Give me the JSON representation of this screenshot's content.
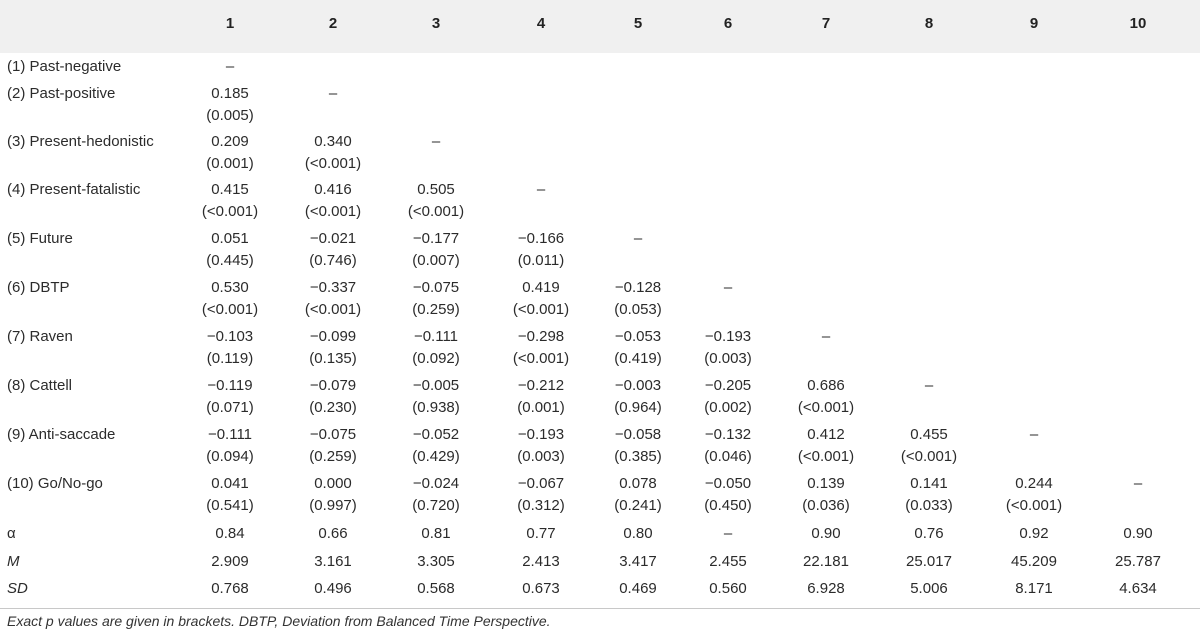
{
  "columns": [
    "1",
    "2",
    "3",
    "4",
    "5",
    "6",
    "7",
    "8",
    "9",
    "10"
  ],
  "rows": [
    {
      "label": "(1) Past-negative",
      "cells": [
        [
          "–",
          ""
        ]
      ]
    },
    {
      "label": "(2) Past-positive",
      "cells": [
        [
          "0.185",
          "(0.005)"
        ],
        [
          "–",
          ""
        ]
      ]
    },
    {
      "label": "(3) Present-hedonistic",
      "cells": [
        [
          "0.209",
          "(0.001)"
        ],
        [
          "0.340",
          "(<0.001)"
        ],
        [
          "–",
          ""
        ]
      ]
    },
    {
      "label": "(4) Present-fatalistic",
      "cells": [
        [
          "0.415",
          "(<0.001)"
        ],
        [
          "0.416",
          "(<0.001)"
        ],
        [
          "0.505",
          "(<0.001)"
        ],
        [
          "–",
          ""
        ]
      ]
    },
    {
      "label": "(5) Future",
      "cells": [
        [
          "0.051",
          "(0.445)"
        ],
        [
          "−0.021",
          "(0.746)"
        ],
        [
          "−0.177",
          "(0.007)"
        ],
        [
          "−0.166",
          "(0.011)"
        ],
        [
          "–",
          ""
        ]
      ]
    },
    {
      "label": "(6) DBTP",
      "cells": [
        [
          "0.530",
          "(<0.001)"
        ],
        [
          "−0.337",
          "(<0.001)"
        ],
        [
          "−0.075",
          "(0.259)"
        ],
        [
          "0.419",
          "(<0.001)"
        ],
        [
          "−0.128",
          "(0.053)"
        ],
        [
          "–",
          ""
        ]
      ]
    },
    {
      "label": "(7) Raven",
      "cells": [
        [
          "−0.103",
          "(0.119)"
        ],
        [
          "−0.099",
          "(0.135)"
        ],
        [
          "−0.111",
          "(0.092)"
        ],
        [
          "−0.298",
          "(<0.001)"
        ],
        [
          "−0.053",
          "(0.419)"
        ],
        [
          "−0.193",
          "(0.003)"
        ],
        [
          "–",
          ""
        ]
      ]
    },
    {
      "label": "(8) Cattell",
      "cells": [
        [
          "−0.119",
          "(0.071)"
        ],
        [
          "−0.079",
          "(0.230)"
        ],
        [
          "−0.005",
          "(0.938)"
        ],
        [
          "−0.212",
          "(0.001)"
        ],
        [
          "−0.003",
          "(0.964)"
        ],
        [
          "−0.205",
          "(0.002)"
        ],
        [
          "0.686",
          "(<0.001)"
        ],
        [
          "–",
          ""
        ]
      ]
    },
    {
      "label": "(9) Anti-saccade",
      "cells": [
        [
          "−0.111",
          "(0.094)"
        ],
        [
          "−0.075",
          "(0.259)"
        ],
        [
          "−0.052",
          "(0.429)"
        ],
        [
          "−0.193",
          "(0.003)"
        ],
        [
          "−0.058",
          "(0.385)"
        ],
        [
          "−0.132",
          "(0.046)"
        ],
        [
          "0.412",
          "(<0.001)"
        ],
        [
          "0.455",
          "(<0.001)"
        ],
        [
          "–",
          ""
        ]
      ]
    },
    {
      "label": "(10) Go/No-go",
      "cells": [
        [
          "0.041",
          "(0.541)"
        ],
        [
          "0.000",
          "(0.997)"
        ],
        [
          "−0.024",
          "(0.720)"
        ],
        [
          "−0.067",
          "(0.312)"
        ],
        [
          "0.078",
          "(0.241)"
        ],
        [
          "−0.050",
          "(0.450)"
        ],
        [
          "0.139",
          "(0.036)"
        ],
        [
          "0.141",
          "(0.033)"
        ],
        [
          "0.244",
          "(<0.001)"
        ],
        [
          "–",
          ""
        ]
      ]
    }
  ],
  "stats": [
    {
      "label": "α",
      "italic": false,
      "values": [
        "0.84",
        "0.66",
        "0.81",
        "0.77",
        "0.80",
        "–",
        "0.90",
        "0.76",
        "0.92",
        "0.90"
      ]
    },
    {
      "label": "M",
      "italic": true,
      "values": [
        "2.909",
        "3.161",
        "3.305",
        "2.413",
        "3.417",
        "2.455",
        "22.181",
        "25.017",
        "45.209",
        "25.787"
      ]
    },
    {
      "label": "SD",
      "italic": true,
      "values": [
        "0.768",
        "0.496",
        "0.568",
        "0.673",
        "0.469",
        "0.560",
        "6.928",
        "5.006",
        "8.171",
        "4.634"
      ]
    }
  ],
  "footnote": "Exact p values are given in brackets. DBTP, Deviation from Balanced Time Perspective."
}
